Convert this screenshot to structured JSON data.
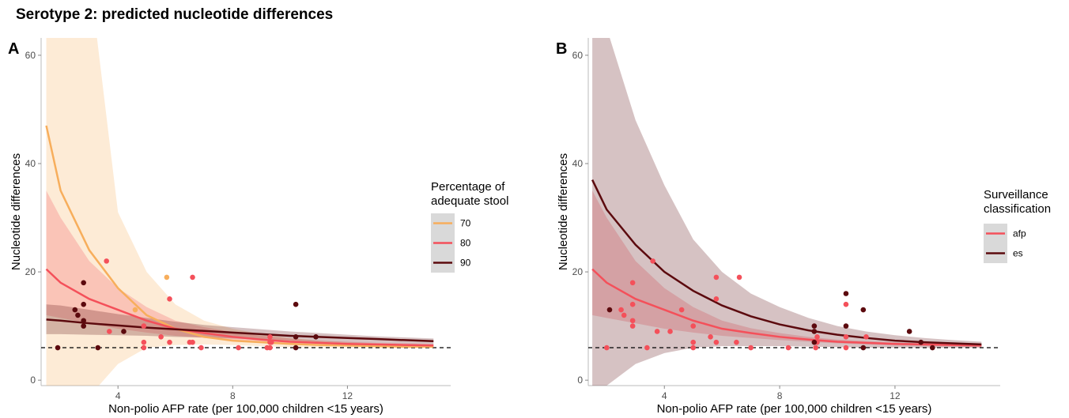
{
  "title": "Serotype 2: predicted nucleotide differences",
  "chart_data": [
    {
      "type": "line",
      "panel": "A",
      "x_label": "Non-polio AFP rate (per 100,000 children <15 years)",
      "y_label": "Nucleotide differences",
      "xlim": [
        1.32,
        15.6
      ],
      "ylim": [
        -1,
        63.2
      ],
      "xticks": [
        4,
        8,
        12
      ],
      "yticks": [
        0,
        20,
        40,
        60
      ],
      "grid": false,
      "hline": 6,
      "legend_title": "Percentage of adequate stool",
      "x": [
        1.5,
        2,
        3,
        4,
        5,
        6,
        7,
        8,
        9,
        10,
        11,
        12,
        13,
        14,
        15
      ],
      "series": [
        {
          "name": "70",
          "color": "#f7ae5c",
          "values": [
            47,
            35,
            24,
            17,
            12,
            9.5,
            8,
            7.3,
            7,
            6.7,
            6.5,
            6.4,
            6.3,
            6.2,
            6.2
          ],
          "band_upper": [
            100,
            100,
            75,
            31,
            20,
            14,
            11,
            9.5,
            8.5,
            7.8,
            7.3,
            7,
            6.8,
            6.7,
            6.6
          ],
          "band_lower": [
            -10,
            -8,
            -3,
            3,
            6,
            6.5,
            6.6,
            6.5,
            6.3,
            6.1,
            6,
            6,
            5.9,
            5.9,
            5.9
          ],
          "points_x": [
            5.7,
            4.6
          ],
          "points_y": [
            19,
            13
          ]
        },
        {
          "name": "80",
          "color": "#f4505a",
          "values": [
            20.5,
            18,
            15,
            13,
            11,
            9.5,
            8.7,
            8,
            7.5,
            7.1,
            6.9,
            6.7,
            6.6,
            6.5,
            6.4
          ],
          "band_upper": [
            35,
            30,
            22,
            17,
            13.5,
            11,
            9.8,
            8.9,
            8.2,
            7.7,
            7.3,
            7.1,
            6.9,
            6.8,
            6.7
          ],
          "band_lower": [
            12,
            11.5,
            10.5,
            9.5,
            8.8,
            8.2,
            7.8,
            7.4,
            7.1,
            6.8,
            6.6,
            6.4,
            6.3,
            6.2,
            6.1
          ],
          "points_x": [
            3.6,
            3.7,
            4.9,
            4.9,
            4.9,
            5.5,
            5.8,
            5.8,
            6.5,
            6.6,
            6.6,
            6.9,
            8.2,
            9.2,
            9.3,
            9.3,
            9.3,
            9.35
          ],
          "points_y": [
            22,
            9,
            10,
            7,
            6,
            8,
            15,
            7,
            7,
            19,
            7,
            6,
            6,
            6,
            8,
            7,
            6,
            7
          ]
        },
        {
          "name": "90",
          "color": "#5c0a0e",
          "values": [
            11.2,
            11,
            10.5,
            10.1,
            9.7,
            9.4,
            9.1,
            8.8,
            8.5,
            8.2,
            8,
            7.8,
            7.6,
            7.4,
            7.2
          ],
          "band_upper": [
            14,
            13.8,
            13,
            12.2,
            11.5,
            10.8,
            10.2,
            9.8,
            9.4,
            9,
            8.7,
            8.4,
            8.1,
            7.9,
            7.7
          ],
          "band_lower": [
            8.5,
            8.5,
            8.4,
            8.3,
            8.2,
            8,
            7.9,
            7.7,
            7.5,
            7.3,
            7.1,
            6.9,
            6.8,
            6.7,
            6.6
          ],
          "points_x": [
            1.9,
            2.5,
            2.6,
            2.8,
            2.8,
            2.8,
            2.8,
            3.3,
            4.2,
            10.2,
            10.2,
            10.2,
            10.9
          ],
          "points_y": [
            6,
            13,
            12,
            18,
            14,
            11,
            10,
            6,
            9,
            14,
            8,
            6,
            8
          ]
        }
      ]
    },
    {
      "type": "line",
      "panel": "B",
      "x_label": "Non-polio AFP rate (per 100,000 children <15 years)",
      "y_label": "Nucleotide differences",
      "xlim": [
        1.36,
        15.65
      ],
      "ylim": [
        -1,
        63.2
      ],
      "xticks": [
        4,
        8,
        12
      ],
      "yticks": [
        0,
        20,
        40,
        60
      ],
      "grid": false,
      "hline": 6,
      "legend_title": "Surveillance classification",
      "x": [
        1.5,
        2,
        3,
        4,
        5,
        6,
        7,
        8,
        9,
        10,
        11,
        12,
        13,
        14,
        15
      ],
      "series": [
        {
          "name": "afp",
          "color": "#f4505a",
          "values": [
            20.5,
            18,
            15,
            13,
            11,
            9.5,
            8.7,
            8,
            7.5,
            7.1,
            6.9,
            6.7,
            6.6,
            6.5,
            6.4
          ],
          "band_upper": [
            35,
            30,
            22,
            17,
            13.5,
            11,
            9.6,
            8.7,
            8,
            7.5,
            7.2,
            7,
            6.8,
            6.7,
            6.6
          ],
          "band_lower": [
            12,
            11.5,
            10.5,
            9.5,
            8.8,
            8.2,
            7.8,
            7.4,
            7.1,
            6.8,
            6.6,
            6.4,
            6.3,
            6.2,
            6.1
          ],
          "points_x": [
            2,
            2.5,
            2.6,
            2.9,
            2.9,
            2.9,
            2.9,
            3.4,
            3.6,
            3.75,
            4.2,
            4.6,
            5,
            5,
            5,
            5.6,
            5.8,
            5.8,
            5.8,
            6.5,
            6.6,
            7,
            8.3,
            9.25,
            9.3,
            9.3,
            10.3,
            10.3,
            10.3,
            11
          ],
          "points_y": [
            6,
            13,
            12,
            18,
            14,
            11,
            10,
            6,
            22,
            9,
            9,
            13,
            10,
            7,
            6,
            8,
            19,
            15,
            7,
            7,
            19,
            6,
            6,
            6,
            8,
            7,
            14,
            8,
            6,
            8
          ]
        },
        {
          "name": "es",
          "color": "#5c0a0e",
          "values": [
            37,
            31.5,
            25,
            20,
            16.5,
            13.8,
            11.8,
            10.3,
            9.2,
            8.4,
            7.8,
            7.3,
            7,
            6.8,
            6.6
          ],
          "band_upper": [
            70,
            65,
            48,
            36,
            26,
            20,
            16,
            13.5,
            11.5,
            10,
            9,
            8.3,
            7.8,
            7.4,
            7.1
          ],
          "band_lower": [
            -2,
            -1,
            3,
            5,
            6,
            6.3,
            6.3,
            6.3,
            6.2,
            6.1,
            6,
            6,
            6,
            6,
            6
          ],
          "points_x": [
            2.1,
            9.2,
            9.2,
            9.2,
            10.3,
            10.3,
            10.9,
            10.9,
            12.5,
            12.9,
            13.3
          ],
          "points_y": [
            13,
            10,
            9,
            7,
            16,
            10,
            13,
            6,
            9,
            7,
            6
          ]
        }
      ]
    }
  ]
}
